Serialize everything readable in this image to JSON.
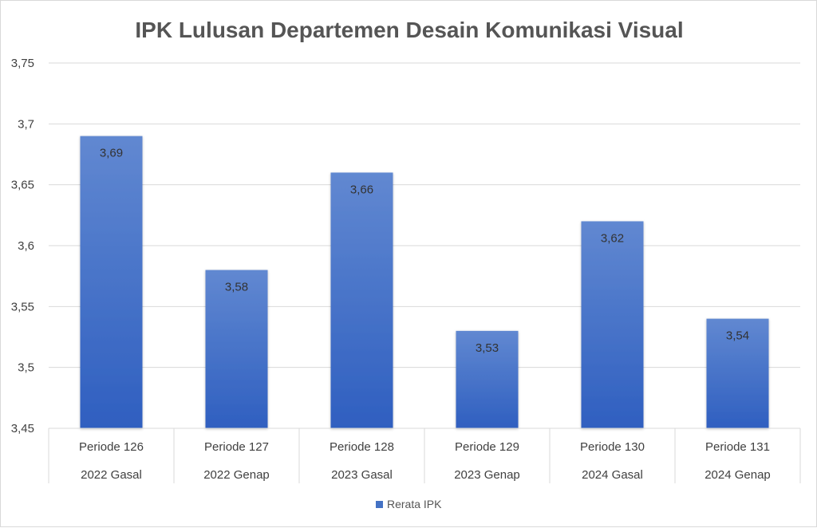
{
  "chart_data": {
    "type": "bar",
    "title": "IPK Lulusan Departemen Desain Komunikasi Visual",
    "categories": [
      [
        "Periode 126",
        "2022 Gasal"
      ],
      [
        "Periode 127",
        "2022 Genap"
      ],
      [
        "Periode 128",
        "2023 Gasal"
      ],
      [
        "Periode 129",
        "2023 Genap"
      ],
      [
        "Periode 130",
        "2024 Gasal"
      ],
      [
        "Periode 131",
        "2024 Genap"
      ]
    ],
    "series": [
      {
        "name": "Rerata IPK",
        "values": [
          3.69,
          3.58,
          3.66,
          3.53,
          3.62,
          3.54
        ],
        "data_labels": [
          "3,69",
          "3,58",
          "3,66",
          "3,53",
          "3,62",
          "3,54"
        ],
        "color": "#4472C4"
      }
    ],
    "ylim": [
      3.45,
      3.75
    ],
    "yticks": [
      3.45,
      3.5,
      3.55,
      3.6,
      3.65,
      3.7,
      3.75
    ],
    "ytick_labels": [
      "3,45",
      "3,5",
      "3,55",
      "3,6",
      "3,65",
      "3,7",
      "3,75"
    ],
    "grid": true,
    "legend_position": "bottom"
  }
}
